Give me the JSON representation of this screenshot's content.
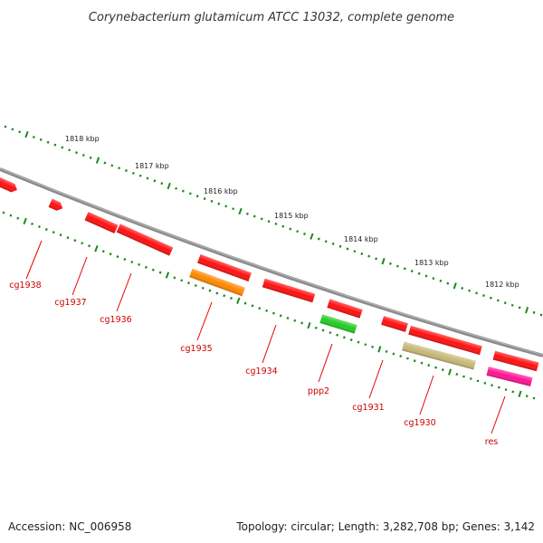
{
  "title": "Corynebacterium glutamicum ATCC 13032, complete genome",
  "footer": {
    "accession": "Accession: NC_006958",
    "summary": "Topology: circular; Length: 3,282,708 bp; Genes: 3,142"
  },
  "colors": {
    "backbone": "#8c8c8c",
    "tick": "#1a8a1a",
    "gene_default": "#ff1010",
    "label": "#cc0000"
  },
  "scale_labels": [
    "1818 kbp",
    "1817 kbp",
    "1816 kbp",
    "1815 kbp",
    "1814 kbp",
    "1813 kbp",
    "1812 kbp"
  ],
  "genes": [
    {
      "name": "cg1938",
      "color": "#ff1010"
    },
    {
      "name": "cg1937",
      "color": "#ff1010"
    },
    {
      "name": "cg1936",
      "color": "#ff1010"
    },
    {
      "name": "cg1935",
      "color": "#ff8800"
    },
    {
      "name": "cg1934",
      "color": "#ff1010"
    },
    {
      "name": "ppp2",
      "color": "#22cc22"
    },
    {
      "name": "cg1931",
      "color": "#ff1010"
    },
    {
      "name": "cg1930",
      "color": "#c8b878"
    },
    {
      "name": "res",
      "color": "#ff1493"
    }
  ]
}
